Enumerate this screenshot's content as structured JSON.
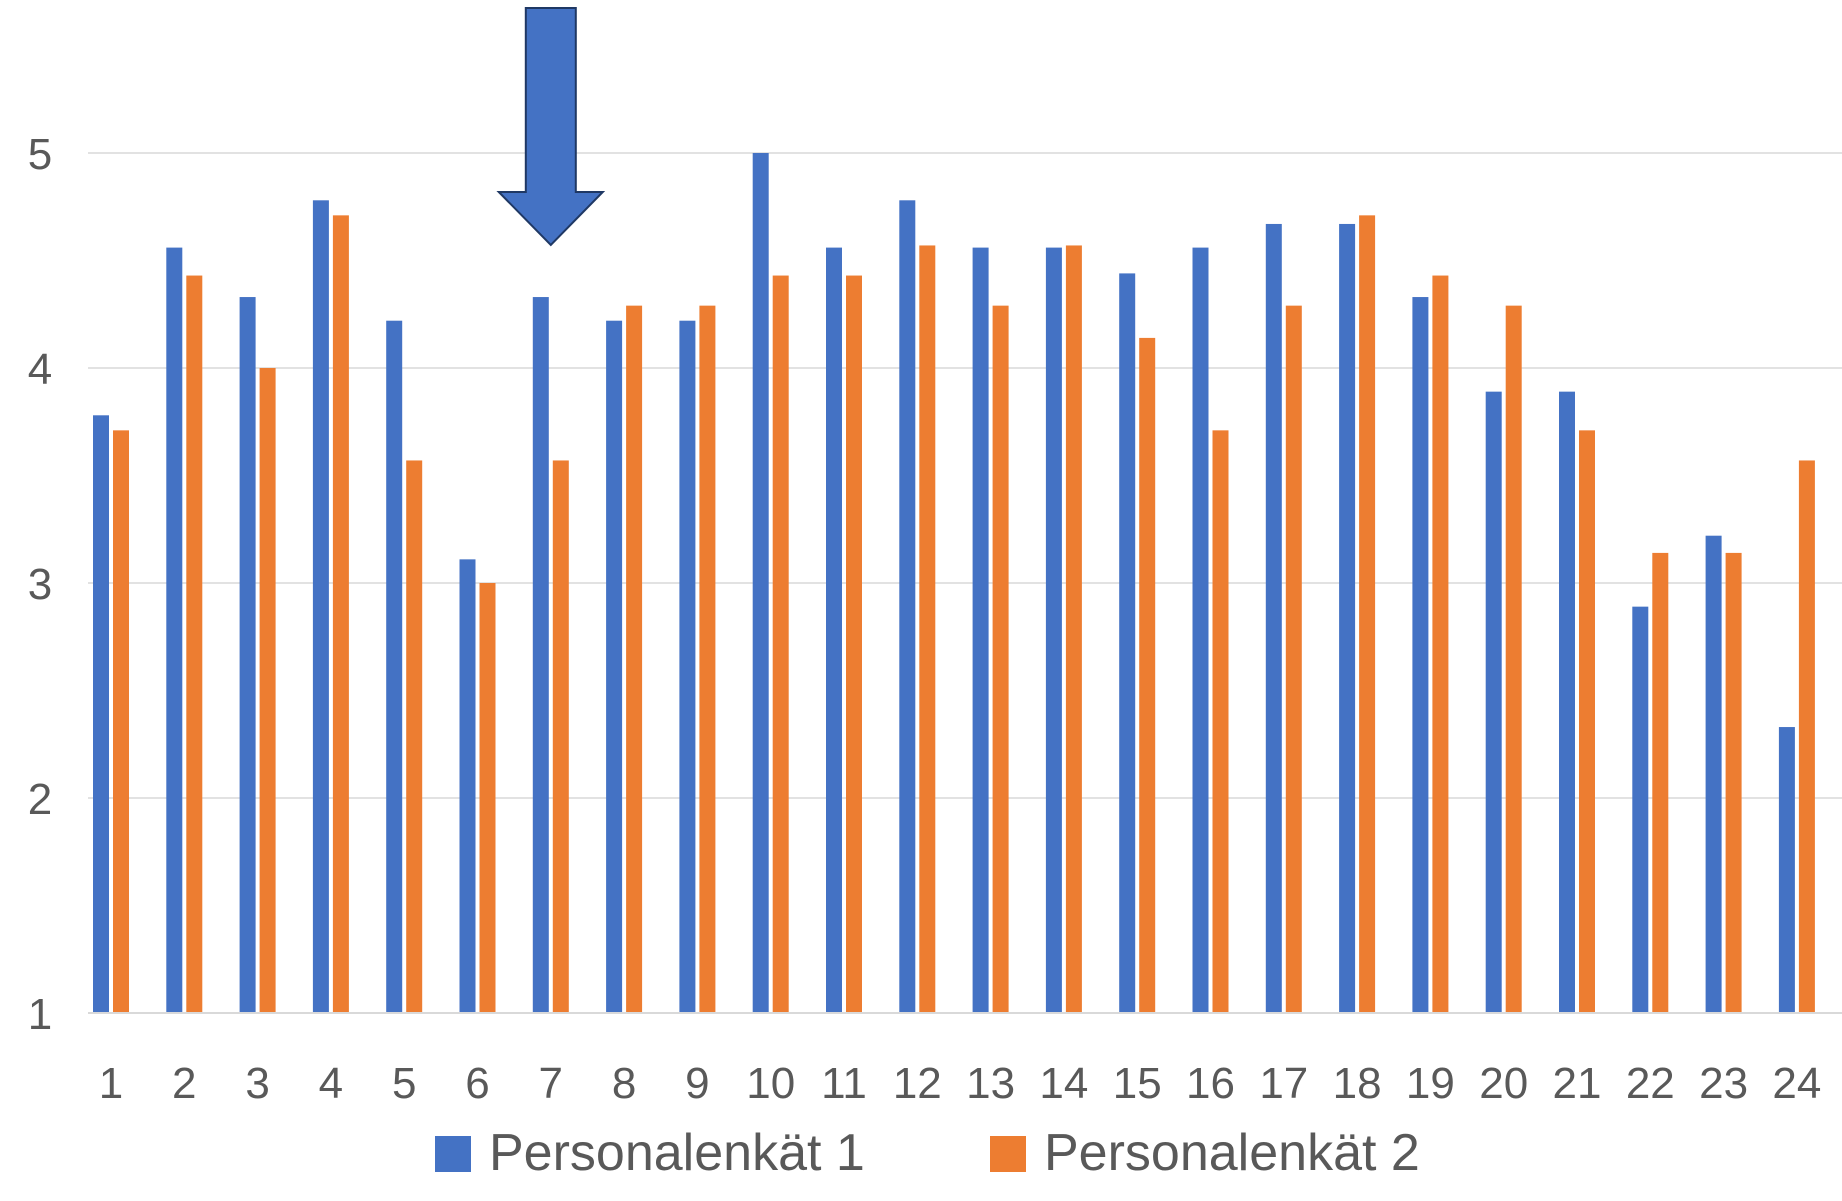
{
  "chart_data": {
    "type": "bar",
    "categories": [
      "1",
      "2",
      "3",
      "4",
      "5",
      "6",
      "7",
      "8",
      "9",
      "10",
      "11",
      "12",
      "13",
      "14",
      "15",
      "16",
      "17",
      "18",
      "19",
      "20",
      "21",
      "22",
      "23",
      "24"
    ],
    "series": [
      {
        "name": "Personalenkät 1",
        "color": "#4472C4",
        "values": [
          3.78,
          4.56,
          4.33,
          4.78,
          4.22,
          3.11,
          4.33,
          4.22,
          4.22,
          5.0,
          4.56,
          4.78,
          4.56,
          4.56,
          4.44,
          4.56,
          4.67,
          4.67,
          4.33,
          3.89,
          3.89,
          2.89,
          3.22,
          2.33
        ]
      },
      {
        "name": "Personalenkät 2",
        "color": "#ED7D31",
        "values": [
          3.71,
          4.43,
          4.0,
          4.71,
          3.57,
          3.0,
          3.57,
          4.29,
          4.29,
          4.43,
          4.43,
          4.57,
          4.29,
          4.57,
          4.14,
          3.71,
          4.29,
          4.71,
          4.43,
          4.29,
          3.71,
          3.14,
          3.14,
          3.57
        ]
      }
    ],
    "yticks": [
      "1",
      "2",
      "3",
      "4",
      "5"
    ],
    "ylim": [
      1,
      5
    ],
    "grid": true,
    "legend_position": "bottom",
    "annotation": {
      "type": "down-arrow",
      "category": "7",
      "color": "#4472C4"
    }
  }
}
